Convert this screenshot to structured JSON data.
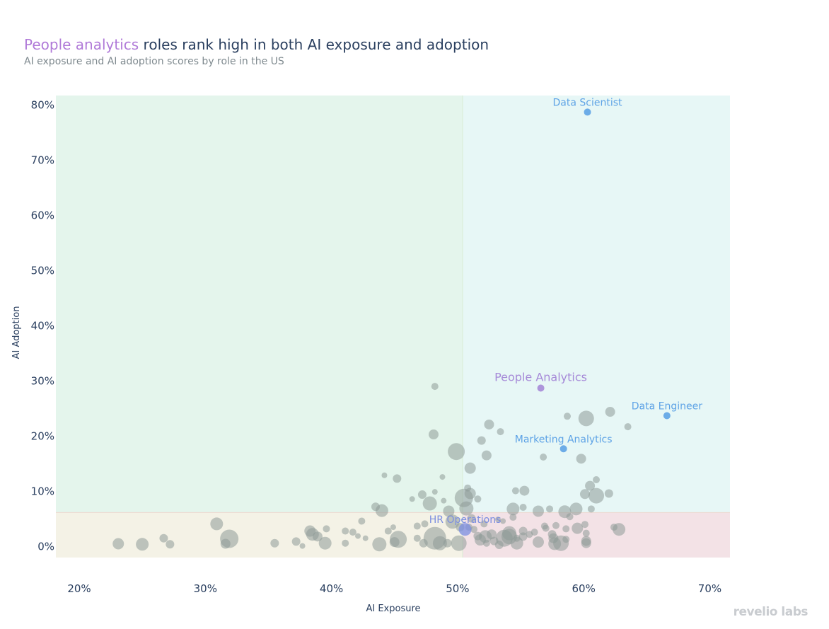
{
  "header": {
    "title_highlight": "People analytics",
    "title_rest": " roles rank high in both AI exposure and adoption",
    "subtitle": "AI exposure and AI adoption scores by role in the US"
  },
  "logo": "revelio labs",
  "colors": {
    "title_highlight": "#b07ad8",
    "title": "#2a3f5f",
    "quadrant_top_left": "#e4f5ec",
    "quadrant_top_right": "#e7f7f6",
    "quadrant_bottom_left": "#f4f2e6",
    "quadrant_bottom_right": "#f3e2e6",
    "points": "#8e9a97",
    "blue_highlight": "#5ea3e6",
    "purple_highlight": "#a68ad8",
    "hr_highlight": "#7b8ee0"
  },
  "chart_data": {
    "type": "scatter",
    "title": "People analytics roles rank high in both AI exposure and adoption",
    "subtitle": "AI exposure and AI adoption scores by role in the US",
    "xlabel": "AI Exposure",
    "ylabel": "AI Adoption",
    "xlim": [
      18.15,
      71.6
    ],
    "ylim": [
      -2,
      81.7
    ],
    "x_ticks": [
      "20%",
      "30%",
      "40%",
      "50%",
      "60%",
      "70%"
    ],
    "x_tick_values": [
      20,
      30,
      40,
      50,
      60,
      70
    ],
    "y_ticks": [
      "0%",
      "10%",
      "20%",
      "30%",
      "40%",
      "50%",
      "60%",
      "70%",
      "80%"
    ],
    "y_tick_values": [
      0,
      10,
      20,
      30,
      40,
      50,
      60,
      70,
      80
    ],
    "grid": false,
    "quadrant_thresholds": {
      "x": 50.4,
      "y": 6.15
    },
    "point_format": [
      "ai_exposure_pct",
      "ai_adoption_pct",
      "relative_size"
    ],
    "points": [
      [
        23.1,
        0.5,
        8
      ],
      [
        25.0,
        0.4,
        9
      ],
      [
        26.7,
        1.5,
        6
      ],
      [
        27.2,
        0.4,
        6
      ],
      [
        30.9,
        4.1,
        9
      ],
      [
        31.6,
        0.5,
        7
      ],
      [
        31.9,
        1.4,
        13
      ],
      [
        35.5,
        0.6,
        6
      ],
      [
        37.2,
        0.9,
        6
      ],
      [
        37.7,
        0.1,
        4
      ],
      [
        38.3,
        2.8,
        8
      ],
      [
        38.5,
        2.2,
        9
      ],
      [
        38.9,
        1.8,
        7
      ],
      [
        39.5,
        0.6,
        9
      ],
      [
        39.6,
        3.2,
        5
      ],
      [
        41.1,
        2.8,
        5
      ],
      [
        41.1,
        0.6,
        5
      ],
      [
        41.7,
        2.6,
        5
      ],
      [
        42.1,
        1.9,
        4
      ],
      [
        42.4,
        4.6,
        5
      ],
      [
        42.7,
        1.5,
        4
      ],
      [
        43.5,
        7.2,
        6
      ],
      [
        44.0,
        6.5,
        9
      ],
      [
        43.8,
        0.4,
        10
      ],
      [
        44.2,
        12.9,
        4
      ],
      [
        44.5,
        2.8,
        5
      ],
      [
        44.9,
        3.5,
        4
      ],
      [
        45.2,
        12.3,
        6
      ],
      [
        45.3,
        1.3,
        12
      ],
      [
        45.0,
        0.8,
        7
      ],
      [
        46.4,
        8.6,
        4
      ],
      [
        46.8,
        1.5,
        5
      ],
      [
        46.8,
        3.7,
        5
      ],
      [
        47.2,
        9.4,
        6
      ],
      [
        47.3,
        0.6,
        6
      ],
      [
        47.4,
        4.1,
        5
      ],
      [
        47.8,
        7.8,
        10
      ],
      [
        48.2,
        29.0,
        5
      ],
      [
        48.1,
        20.3,
        7
      ],
      [
        48.2,
        9.9,
        4
      ],
      [
        48.2,
        1.5,
        16
      ],
      [
        48.6,
        0.6,
        10
      ],
      [
        48.8,
        12.6,
        4
      ],
      [
        48.9,
        8.3,
        4
      ],
      [
        49.2,
        0.6,
        6
      ],
      [
        49.3,
        6.4,
        8
      ],
      [
        49.6,
        4.5,
        10
      ],
      [
        49.9,
        17.2,
        12
      ],
      [
        50.1,
        0.6,
        11
      ],
      [
        50.2,
        3.5,
        6
      ],
      [
        50.5,
        8.8,
        13
      ],
      [
        50.7,
        6.9,
        10
      ],
      [
        50.8,
        10.6,
        5
      ],
      [
        51.0,
        14.2,
        8
      ],
      [
        51.0,
        9.6,
        8
      ],
      [
        51.6,
        8.6,
        5
      ],
      [
        51.9,
        19.2,
        6
      ],
      [
        52.1,
        4.1,
        5
      ],
      [
        52.3,
        16.5,
        7
      ],
      [
        52.5,
        22.1,
        7
      ],
      [
        53.4,
        20.8,
        5
      ],
      [
        54.4,
        6.8,
        9
      ],
      [
        53.2,
        4.9,
        4
      ],
      [
        53.6,
        4.6,
        4
      ],
      [
        54.1,
        1.8,
        11
      ],
      [
        54.4,
        5.3,
        5
      ],
      [
        54.6,
        10.1,
        5
      ],
      [
        55.2,
        7.1,
        5
      ],
      [
        55.3,
        10.1,
        7
      ],
      [
        55.2,
        2.8,
        6
      ],
      [
        55.7,
        2.2,
        5
      ],
      [
        56.4,
        6.4,
        8
      ],
      [
        56.4,
        0.8,
        8
      ],
      [
        56.8,
        16.2,
        5
      ],
      [
        56.9,
        3.7,
        5
      ],
      [
        57.0,
        3.3,
        5
      ],
      [
        57.3,
        6.8,
        5
      ],
      [
        57.5,
        2.2,
        6
      ],
      [
        57.6,
        1.5,
        7
      ],
      [
        57.8,
        3.8,
        5
      ],
      [
        58.2,
        0.6,
        11
      ],
      [
        58.5,
        6.3,
        9
      ],
      [
        58.6,
        3.2,
        5
      ],
      [
        58.7,
        23.6,
        5
      ],
      [
        58.9,
        5.4,
        5
      ],
      [
        59.4,
        6.8,
        9
      ],
      [
        59.5,
        3.3,
        8
      ],
      [
        59.8,
        15.9,
        7
      ],
      [
        60.1,
        9.5,
        7
      ],
      [
        60.2,
        0.6,
        7
      ],
      [
        60.5,
        11.0,
        7
      ],
      [
        60.6,
        6.8,
        5
      ],
      [
        61.0,
        12.1,
        5
      ],
      [
        61.0,
        9.2,
        11
      ],
      [
        62.0,
        9.6,
        6
      ],
      [
        62.1,
        24.4,
        7
      ],
      [
        62.4,
        3.5,
        5
      ],
      [
        62.8,
        3.1,
        9
      ],
      [
        63.5,
        21.7,
        5
      ],
      [
        60.2,
        23.2,
        11
      ],
      [
        60.2,
        2.4,
        5
      ],
      [
        60.1,
        4.0,
        5
      ],
      [
        58.6,
        1.3,
        5
      ],
      [
        57.7,
        0.5,
        9
      ],
      [
        52.9,
        1.0,
        6
      ],
      [
        52.3,
        0.6,
        5
      ],
      [
        52.7,
        2.2,
        7
      ],
      [
        53.7,
        1.5,
        12
      ],
      [
        54.1,
        2.4,
        10
      ],
      [
        51.8,
        1.2,
        8
      ],
      [
        51.6,
        1.9,
        6
      ],
      [
        51.3,
        3.1,
        5
      ],
      [
        52.2,
        1.8,
        9
      ],
      [
        55.2,
        1.8,
        6
      ],
      [
        54.7,
        1.5,
        5
      ],
      [
        56.1,
        2.6,
        5
      ],
      [
        53.3,
        0.3,
        6
      ],
      [
        54.7,
        0.6,
        9
      ],
      [
        51.1,
        5.1,
        6
      ],
      [
        50.9,
        3.5,
        5
      ],
      [
        60.2,
        1.0,
        7
      ]
    ],
    "highlighted": [
      {
        "label": "Data Scientist",
        "x": 60.3,
        "y": 78.7,
        "size": 5,
        "color": "#5ea3e6"
      },
      {
        "label": "People Analytics",
        "x": 56.6,
        "y": 28.7,
        "size": 5,
        "color": "#a68ad8"
      },
      {
        "label": "Data Engineer",
        "x": 66.6,
        "y": 23.7,
        "size": 5,
        "color": "#5ea3e6"
      },
      {
        "label": "Marketing Analytics",
        "x": 58.4,
        "y": 17.7,
        "size": 5,
        "color": "#5ea3e6"
      },
      {
        "label": "HR Operations",
        "x": 50.6,
        "y": 3.1,
        "size": 9,
        "color": "#7b8ee0"
      }
    ]
  }
}
